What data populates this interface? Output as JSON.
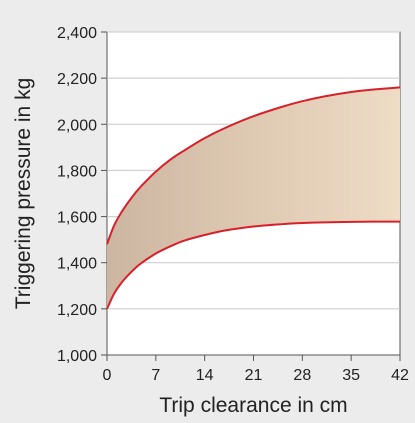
{
  "chart_data": {
    "type": "area",
    "title": "",
    "xlabel": "Trip clearance in cm",
    "ylabel": "Triggering pressure in kg",
    "xlim": [
      0,
      42
    ],
    "ylim": [
      1000,
      2400
    ],
    "x_ticks": [
      0,
      7,
      14,
      21,
      28,
      35,
      42
    ],
    "y_ticks": [
      1000,
      1200,
      1400,
      1600,
      1800,
      2000,
      2200,
      2400
    ],
    "y_tick_labels": [
      "1,000",
      "1,200",
      "1,400",
      "1,600",
      "1,800",
      "2,000",
      "2,200",
      "2,400"
    ],
    "grid": "horizontal",
    "series": [
      {
        "role": "upper",
        "x": [
          0,
          1,
          2,
          3,
          4,
          5,
          7,
          9,
          11,
          14,
          17,
          21,
          25,
          28,
          31,
          35,
          38,
          40,
          42
        ],
        "values": [
          1480,
          1560,
          1615,
          1660,
          1700,
          1735,
          1795,
          1845,
          1885,
          1940,
          1985,
          2035,
          2075,
          2100,
          2120,
          2140,
          2150,
          2155,
          2160
        ]
      },
      {
        "role": "lower",
        "x": [
          0,
          1,
          2,
          3,
          4,
          5,
          7,
          9,
          11,
          14,
          17,
          21,
          25,
          28,
          31,
          35,
          38,
          40,
          42
        ],
        "values": [
          1200,
          1265,
          1310,
          1345,
          1375,
          1400,
          1440,
          1470,
          1495,
          1520,
          1540,
          1557,
          1567,
          1572,
          1575,
          1577,
          1578,
          1578,
          1578
        ]
      }
    ],
    "colors": {
      "curve": "#d8202a",
      "fill_left": "#cdb6a1",
      "fill_right": "#efdcc5",
      "grid": "#c8c8c8",
      "plot_bg": "#ffffff",
      "page_bg": "#ececec"
    }
  }
}
